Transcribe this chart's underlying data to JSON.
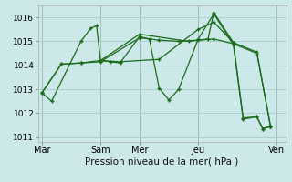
{
  "title": "Pression niveau de la mer( hPa )",
  "bg_color": "#cce8e8",
  "grid_color": "#aacccc",
  "line_color": "#1a6b1a",
  "ylim": [
    1010.8,
    1016.5
  ],
  "yticks": [
    1011,
    1012,
    1013,
    1014,
    1015,
    1016
  ],
  "xtick_labels": [
    "Mar",
    "",
    "",
    "Sam",
    "Mer",
    "",
    "",
    "Jeu",
    "",
    "",
    "",
    "Ven"
  ],
  "xtick_positions": [
    0,
    1,
    2,
    3,
    5,
    6,
    7,
    8,
    9,
    10,
    11,
    12
  ],
  "xlim": [
    -0.2,
    12.5
  ],
  "vline_positions": [
    0,
    3,
    5,
    8,
    12
  ],
  "lines": [
    [
      0.0,
      1012.85,
      0.5,
      1012.5,
      2.0,
      1015.0,
      2.5,
      1015.55,
      2.8,
      1015.65,
      3.0,
      1014.2,
      3.5,
      1014.15,
      4.0,
      1014.1,
      5.0,
      1015.2,
      5.5,
      1015.1,
      6.0,
      1013.05,
      6.5,
      1012.55,
      7.0,
      1013.0,
      8.0,
      1015.1,
      8.8,
      1016.15,
      9.8,
      1014.85,
      10.3,
      1011.75,
      11.0,
      1011.85,
      11.3,
      1011.35,
      11.7,
      1011.45
    ],
    [
      0.0,
      1012.85,
      1.0,
      1014.05,
      2.0,
      1014.1,
      3.0,
      1014.15,
      5.0,
      1015.15,
      6.0,
      1015.05,
      7.0,
      1015.0,
      8.0,
      1015.05,
      8.8,
      1015.1,
      9.8,
      1014.9,
      11.0,
      1014.5,
      11.7,
      1011.45
    ],
    [
      0.0,
      1012.85,
      1.0,
      1014.05,
      2.0,
      1014.1,
      3.0,
      1014.2,
      4.0,
      1014.15,
      6.0,
      1014.25,
      8.0,
      1015.5,
      8.8,
      1015.8,
      9.8,
      1014.95,
      11.0,
      1014.55,
      11.7,
      1011.45
    ],
    [
      3.0,
      1014.2,
      5.0,
      1015.3,
      7.5,
      1015.0,
      8.5,
      1015.1,
      8.8,
      1016.2,
      9.8,
      1014.95,
      10.3,
      1011.8,
      11.0,
      1011.85,
      11.3,
      1011.35,
      11.7,
      1011.45
    ]
  ],
  "vlines": [
    0,
    3,
    5,
    8,
    12
  ],
  "xlabel_fontsize": 7.5,
  "ytick_fontsize": 6.5,
  "xtick_fontsize": 7.0
}
